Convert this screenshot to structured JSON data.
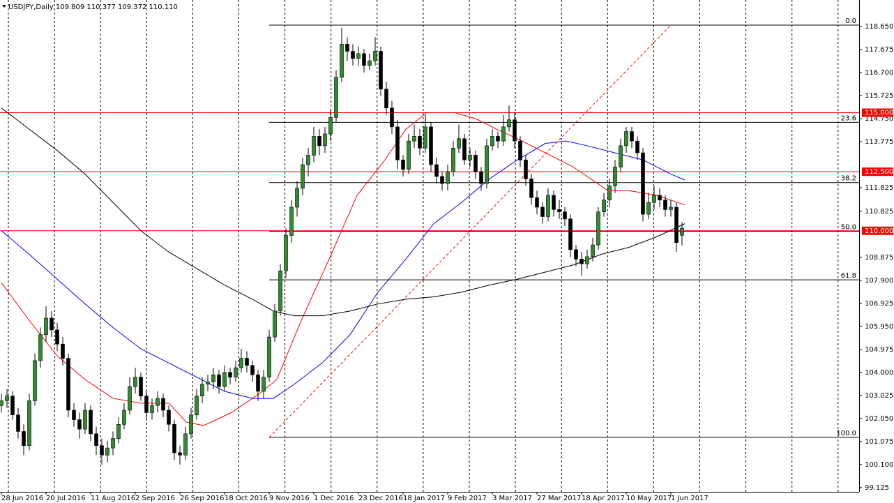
{
  "chart_data": {
    "type": "candlestick",
    "symbol": "USDJPY,Daily",
    "last_bar_labels": [
      "109.809",
      "110.377",
      "109.372",
      "110.110"
    ],
    "bull_color": "#2e8b2e",
    "bear_color": "#000000",
    "xlim": [
      -0.5,
      307.5
    ],
    "ylim": [
      98.943,
      119.773
    ],
    "xticks": [
      {
        "value": 0,
        "label": "28 Jun 2016"
      },
      {
        "value": 16,
        "label": "20 Jul 2016"
      },
      {
        "value": 32,
        "label": "11 Aug 2016"
      },
      {
        "value": 48,
        "label": "2 Sep 2016"
      },
      {
        "value": 64,
        "label": "26 Sep 2016"
      },
      {
        "value": 80,
        "label": "18 Oct 2016"
      },
      {
        "value": 96,
        "label": "9 Nov 2016"
      },
      {
        "value": 112,
        "label": "1 Dec 2016"
      },
      {
        "value": 128,
        "label": "23 Dec 2016"
      },
      {
        "value": 144,
        "label": "18 Jan 2017"
      },
      {
        "value": 160,
        "label": "9 Feb 2017"
      },
      {
        "value": 176,
        "label": "3 Mar 2017"
      },
      {
        "value": 192,
        "label": "27 Mar 2017"
      },
      {
        "value": 208,
        "label": "18 Apr 2017"
      },
      {
        "value": 224,
        "label": "10 May 2017"
      },
      {
        "value": 240,
        "label": "1 Jun 2017"
      }
    ],
    "yticks": [
      {
        "value": 118.65,
        "label": "118.650"
      },
      {
        "value": 117.675,
        "label": "117.675"
      },
      {
        "value": 116.7,
        "label": "116.700"
      },
      {
        "value": 115.725,
        "label": "115.725"
      },
      {
        "value": 114.75,
        "label": "114.750"
      },
      {
        "value": 113.775,
        "label": "113.775"
      },
      {
        "value": 111.825,
        "label": "111.825"
      },
      {
        "value": 110.825,
        "label": "110.825"
      },
      {
        "value": 108.875,
        "label": "108.875"
      },
      {
        "value": 107.9,
        "label": "107.900"
      },
      {
        "value": 106.925,
        "label": "106.925"
      },
      {
        "value": 105.95,
        "label": "105.950"
      },
      {
        "value": 104.975,
        "label": "104.975"
      },
      {
        "value": 104,
        "label": "104.000"
      },
      {
        "value": 103.025,
        "label": "103.025"
      },
      {
        "value": 102.05,
        "label": "102.050"
      },
      {
        "value": 101.075,
        "label": "101.075"
      },
      {
        "value": 100.1,
        "label": "100.100"
      },
      {
        "value": 99.125,
        "label": "99.125"
      }
    ],
    "levels": [
      {
        "value": 115,
        "label": "115.000",
        "color": "#ff0000"
      },
      {
        "value": 112.5,
        "label": "112.500",
        "color": "#ff0000"
      },
      {
        "value": 110,
        "label": "110.000",
        "color": "#ff0000"
      }
    ],
    "fibonacci": {
      "start_x": 96,
      "end_x": 240,
      "color": "#000000",
      "trend_color": "#ff0000",
      "levels": [
        {
          "label": "0.0",
          "price": 118.71
        },
        {
          "label": "23.6",
          "price": 114.59
        },
        {
          "label": "38.2",
          "price": 112.04
        },
        {
          "label": "50.0",
          "price": 109.98
        },
        {
          "label": "61.8",
          "price": 107.92
        },
        {
          "label": "100.0",
          "price": 101.25
        }
      ]
    },
    "candles": {
      "x": [
        0,
        2,
        4,
        6,
        8,
        10,
        12,
        14,
        16,
        18,
        20,
        22,
        24,
        26,
        28,
        30,
        32,
        34,
        36,
        38,
        40,
        42,
        44,
        46,
        48,
        50,
        52,
        54,
        56,
        58,
        60,
        62,
        64,
        66,
        68,
        70,
        72,
        74,
        76,
        78,
        80,
        82,
        84,
        86,
        88,
        90,
        92,
        94,
        96,
        98,
        100,
        102,
        104,
        106,
        108,
        110,
        112,
        114,
        116,
        118,
        120,
        122,
        124,
        126,
        128,
        130,
        132,
        134,
        136,
        138,
        140,
        142,
        144,
        146,
        148,
        150,
        152,
        154,
        156,
        158,
        160,
        162,
        164,
        166,
        168,
        170,
        172,
        174,
        176,
        178,
        180,
        182,
        184,
        186,
        188,
        190,
        192,
        194,
        196,
        198,
        200,
        202,
        204,
        206,
        208,
        210,
        212,
        214,
        216,
        218,
        220,
        222,
        224,
        226,
        228,
        230,
        232,
        234,
        236,
        238,
        240,
        242,
        244
      ],
      "open": [
        102.6,
        102.8,
        103.0,
        102.2,
        101.5,
        100.9,
        102.8,
        104.5,
        105.6,
        106.3,
        105.8,
        105.2,
        104.6,
        102.4,
        102.0,
        101.6,
        102.4,
        101.4,
        100.9,
        100.5,
        100.8,
        101.2,
        101.8,
        102.4,
        103.4,
        103.8,
        103.0,
        102.3,
        102.6,
        102.9,
        102.4,
        101.8,
        100.6,
        100.5,
        101.4,
        102.2,
        103.0,
        103.5,
        103.6,
        103.9,
        103.4,
        104.0,
        103.8,
        104.2,
        104.6,
        104.3,
        103.9,
        103.2,
        103.8,
        105.5,
        106.6,
        108.3,
        109.8,
        111.0,
        111.8,
        112.8,
        113.2,
        114.0,
        113.6,
        114.1,
        114.8,
        116.5,
        117.9,
        117.6,
        117.3,
        117.5,
        117.0,
        117.2,
        117.6,
        116.0,
        115.2,
        114.4,
        113.0,
        112.6,
        113.8,
        114.0,
        113.5,
        114.4,
        112.8,
        112.3,
        112.0,
        112.5,
        113.5,
        113.9,
        113.0,
        113.2,
        112.5,
        112.0,
        113.6,
        114.0,
        113.8,
        114.4,
        114.7,
        113.8,
        113.0,
        112.2,
        111.4,
        111.0,
        110.6,
        111.5,
        110.9,
        110.8,
        110.5,
        109.2,
        108.8,
        108.6,
        108.9,
        109.4,
        110.8,
        111.3,
        111.9,
        112.7,
        113.6,
        114.2,
        113.8,
        113.3,
        110.7,
        111.2,
        111.5,
        111.3,
        110.9,
        111.0,
        109.809
      ],
      "high": [
        103.1,
        103.3,
        103.2,
        102.5,
        101.8,
        103.1,
        104.8,
        105.9,
        106.8,
        106.6,
        106.1,
        105.5,
        104.8,
        102.7,
        102.3,
        102.7,
        102.6,
        101.7,
        101.2,
        101.1,
        101.5,
        102.1,
        102.7,
        103.8,
        104.2,
        104.0,
        103.2,
        102.9,
        103.2,
        103.1,
        102.6,
        102.0,
        100.9,
        101.7,
        102.5,
        103.3,
        103.8,
        103.9,
        104.2,
        104.1,
        104.3,
        104.2,
        104.5,
        105.0,
        104.9,
        104.5,
        104.1,
        104.1,
        105.8,
        106.9,
        108.6,
        110.1,
        111.3,
        112.1,
        113.1,
        113.5,
        114.4,
        114.3,
        114.4,
        115.1,
        116.8,
        118.6,
        118.2,
        117.9,
        117.8,
        117.7,
        117.5,
        118.2,
        117.8,
        116.3,
        115.5,
        114.7,
        113.2,
        114.1,
        114.5,
        114.3,
        114.9,
        114.6,
        113.1,
        112.5,
        112.8,
        113.8,
        114.5,
        114.1,
        113.5,
        113.4,
        112.7,
        113.9,
        114.3,
        114.2,
        114.9,
        115.3,
        115.0,
        114.0,
        113.2,
        112.4,
        111.7,
        111.2,
        111.8,
        111.7,
        111.3,
        111.0,
        110.7,
        109.4,
        109.1,
        109.2,
        109.7,
        111.0,
        111.6,
        112.2,
        113.0,
        113.9,
        114.4,
        114.4,
        114.0,
        113.5,
        111.6,
        111.9,
        111.8,
        111.5,
        111.3,
        111.2,
        110.377
      ],
      "low": [
        102.3,
        102.5,
        102.0,
        101.2,
        100.5,
        100.7,
        102.6,
        104.2,
        105.3,
        105.5,
        104.9,
        104.3,
        102.1,
        101.7,
        101.2,
        101.4,
        101.1,
        100.5,
        100.1,
        100.2,
        100.5,
        101.0,
        101.6,
        102.2,
        103.1,
        102.8,
        102.0,
        102.0,
        102.3,
        102.1,
        101.5,
        100.3,
        100.1,
        100.3,
        101.2,
        102.0,
        102.7,
        103.2,
        103.3,
        103.1,
        103.2,
        103.5,
        103.6,
        104.0,
        104.0,
        103.6,
        102.8,
        102.9,
        103.6,
        105.3,
        106.4,
        108.0,
        109.5,
        110.6,
        111.5,
        112.3,
        112.9,
        113.2,
        113.3,
        113.8,
        114.6,
        116.3,
        117.2,
        117.0,
        117.0,
        116.7,
        116.8,
        117.0,
        115.7,
        114.9,
        114.1,
        112.6,
        112.3,
        112.4,
        113.5,
        113.2,
        113.3,
        112.5,
        112.0,
        111.7,
        111.7,
        112.3,
        113.3,
        112.8,
        112.7,
        112.2,
        111.7,
        111.8,
        113.4,
        113.5,
        113.6,
        114.2,
        113.5,
        112.7,
        111.9,
        111.1,
        110.7,
        110.3,
        110.4,
        110.6,
        110.5,
        110.2,
        108.9,
        108.5,
        108.1,
        108.4,
        108.7,
        109.2,
        110.6,
        111.0,
        111.6,
        112.5,
        113.3,
        113.5,
        113.0,
        110.4,
        110.5,
        110.9,
        111.0,
        110.6,
        110.6,
        109.1,
        109.372
      ],
      "close": [
        102.8,
        103.0,
        102.2,
        101.5,
        100.9,
        102.8,
        104.5,
        105.6,
        106.3,
        105.8,
        105.2,
        104.6,
        102.4,
        102.0,
        101.6,
        102.4,
        101.4,
        100.9,
        100.5,
        100.8,
        101.2,
        101.8,
        102.4,
        103.4,
        103.8,
        103.0,
        102.3,
        102.6,
        102.9,
        102.4,
        101.8,
        100.6,
        100.5,
        101.4,
        102.2,
        103.0,
        103.5,
        103.6,
        103.9,
        103.4,
        104.0,
        103.8,
        104.2,
        104.6,
        104.3,
        103.9,
        103.2,
        103.8,
        105.5,
        106.6,
        108.3,
        109.8,
        111.0,
        111.8,
        112.8,
        113.2,
        114.0,
        113.6,
        114.1,
        114.8,
        116.5,
        117.9,
        117.6,
        117.3,
        117.5,
        117.0,
        117.2,
        117.6,
        116.0,
        115.2,
        114.4,
        113.0,
        112.6,
        113.8,
        114.0,
        113.5,
        114.4,
        112.8,
        112.3,
        112.0,
        112.5,
        113.5,
        113.9,
        113.0,
        113.2,
        112.5,
        112.0,
        113.6,
        114.0,
        113.8,
        114.4,
        114.7,
        113.8,
        113.0,
        112.2,
        111.4,
        111.0,
        110.6,
        111.5,
        110.9,
        110.8,
        110.5,
        109.2,
        108.8,
        108.6,
        108.9,
        109.4,
        110.8,
        111.3,
        111.9,
        112.7,
        113.6,
        114.2,
        113.8,
        113.3,
        110.7,
        111.2,
        111.5,
        111.3,
        110.9,
        111.0,
        109.5,
        110.11
      ]
    },
    "series": [
      {
        "color": "#ff0000",
        "x": [
          0,
          10,
          20,
          30,
          40,
          50,
          60,
          66.25,
          72.5,
          82.5,
          92.5,
          98.75,
          107.5,
          117.5,
          127.5,
          137.5,
          145,
          152.5,
          162.5,
          170,
          177.5,
          185,
          195,
          205,
          212.5,
          217.5,
          225,
          235,
          245
        ],
        "values": [
          107.8,
          106.2,
          104.7,
          103.7,
          102.9,
          102.7,
          102.7,
          101.9,
          101.75,
          102.3,
          103.1,
          103.7,
          106.2,
          108.8,
          111.5,
          113.0,
          114.3,
          115.0,
          115.0,
          114.75,
          114.3,
          113.9,
          113.3,
          112.7,
          112.1,
          111.7,
          111.7,
          111.5,
          111.1
        ]
      },
      {
        "color": "#0000ff",
        "x": [
          0,
          10,
          20,
          30,
          40,
          50,
          60,
          70,
          80,
          90,
          97.5,
          105,
          115,
          125,
          135,
          145,
          155,
          165,
          175,
          185,
          195,
          202.5,
          210,
          220,
          230,
          240,
          245
        ],
        "values": [
          110.0,
          109.0,
          107.95,
          106.9,
          105.9,
          105.0,
          104.4,
          103.8,
          103.2,
          102.9,
          102.9,
          103.5,
          104.4,
          105.6,
          107.4,
          108.8,
          110.3,
          111.2,
          112.2,
          113.0,
          113.7,
          113.8,
          113.6,
          113.3,
          113.0,
          112.4,
          112.15
        ]
      },
      {
        "color": "#000000",
        "x": [
          0,
          10,
          20,
          30,
          40,
          50,
          60,
          70,
          80,
          90,
          97.5,
          105,
          115,
          125,
          135,
          145,
          155,
          165,
          175,
          185,
          195,
          205,
          215,
          225,
          235,
          245
        ],
        "values": [
          115.2,
          114.3,
          113.4,
          112.4,
          111.2,
          110.0,
          109.1,
          108.4,
          107.7,
          107.1,
          106.6,
          106.4,
          106.4,
          106.6,
          106.9,
          107.1,
          107.2,
          107.4,
          107.7,
          107.95,
          108.25,
          108.55,
          109.0,
          109.3,
          109.75,
          110.3
        ]
      }
    ]
  }
}
